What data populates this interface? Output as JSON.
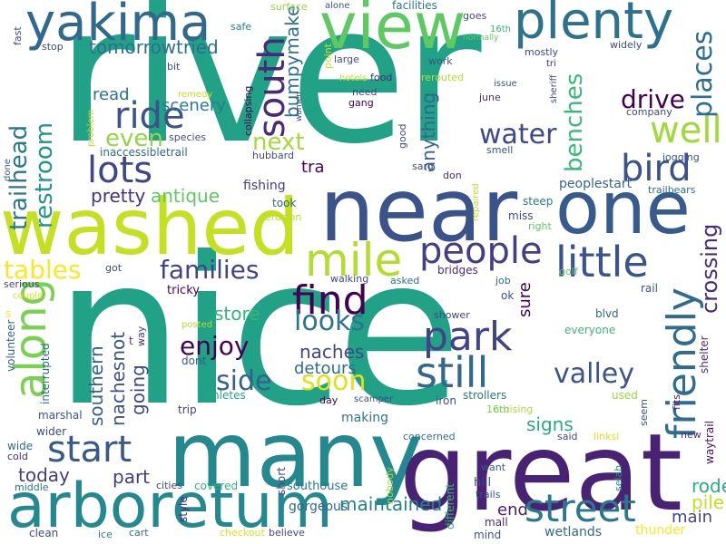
{
  "words": [
    {
      "id": "river",
      "text": "river",
      "color": "#21a185"
    },
    {
      "id": "nice",
      "text": "nice",
      "color": "#21a185"
    },
    {
      "id": "many",
      "text": "many",
      "color": "#23898e"
    },
    {
      "id": "great",
      "text": "great",
      "color": "#482374"
    },
    {
      "id": "near",
      "text": "near",
      "color": "#3a538b"
    },
    {
      "id": "one",
      "text": "one",
      "color": "#375b8d"
    },
    {
      "id": "washed",
      "text": "washed",
      "color": "#c4e021"
    },
    {
      "id": "arboretum",
      "text": "arboretum",
      "color": "#23898e"
    },
    {
      "id": "view",
      "text": "view",
      "color": "#5ec962"
    },
    {
      "id": "plenty",
      "text": "plenty",
      "color": "#2c728e"
    },
    {
      "id": "yakima",
      "text": "yakima",
      "color": "#31688e"
    },
    {
      "id": "mile",
      "text": "mile",
      "color": "#b2dd2d"
    },
    {
      "id": "people",
      "text": "people",
      "color": "#433e85"
    },
    {
      "id": "little",
      "text": "little",
      "color": "#3a548c"
    },
    {
      "id": "find",
      "text": "find",
      "color": "#440154"
    },
    {
      "id": "park",
      "text": "park",
      "color": "#414487"
    },
    {
      "id": "still",
      "text": "still",
      "color": "#31688e"
    },
    {
      "id": "start",
      "text": "start",
      "color": "#38598c"
    },
    {
      "id": "street",
      "text": "street",
      "color": "#2a788e"
    },
    {
      "id": "friendly",
      "text": "friendly",
      "color": "#2f6c8e"
    },
    {
      "id": "along",
      "text": "along",
      "color": "#7ad151"
    },
    {
      "id": "south",
      "text": "south",
      "color": "#472a7a"
    },
    {
      "id": "ride",
      "text": "ride",
      "color": "#3b528b"
    },
    {
      "id": "lots",
      "text": "lots",
      "color": "#3f4788"
    },
    {
      "id": "bird",
      "text": "bird",
      "color": "#3b528b"
    },
    {
      "id": "well",
      "text": "well",
      "color": "#a0da39"
    },
    {
      "id": "water",
      "text": "water",
      "color": "#3e4989"
    },
    {
      "id": "soon",
      "text": "soon",
      "color": "#dde318"
    },
    {
      "id": "valley",
      "text": "valley",
      "color": "#3a548c"
    },
    {
      "id": "enjoy",
      "text": "enjoy",
      "color": "#440154"
    },
    {
      "id": "looks",
      "text": "looks",
      "color": "#2b758e"
    },
    {
      "id": "side",
      "text": "side",
      "color": "#33638d"
    },
    {
      "id": "families",
      "text": "families",
      "color": "#414487"
    },
    {
      "id": "tables",
      "text": "tables",
      "color": "#fde725"
    },
    {
      "id": "trailhead",
      "text": "trailhead",
      "color": "#2a788e"
    },
    {
      "id": "restroom",
      "text": "restroom",
      "color": "#1f968b"
    },
    {
      "id": "places",
      "text": "places",
      "color": "#2d708e"
    },
    {
      "id": "benches",
      "text": "benches",
      "color": "#38b977"
    },
    {
      "id": "crossing",
      "text": "crossing",
      "color": "#472d7b"
    },
    {
      "id": "drive",
      "text": "drive",
      "color": "#440154"
    },
    {
      "id": "even",
      "text": "even",
      "color": "#8fd744"
    },
    {
      "id": "next",
      "text": "next",
      "color": "#a5db36"
    },
    {
      "id": "tomorrowtried",
      "text": "tomorrowtried",
      "color": "#2d708e"
    },
    {
      "id": "bumpymake",
      "text": "bumpymake",
      "color": "#2c728e"
    },
    {
      "id": "pretty",
      "text": "pretty",
      "color": "#46337f"
    },
    {
      "id": "antique",
      "text": "antique",
      "color": "#5ec962"
    },
    {
      "id": "read",
      "text": "read",
      "color": "#2c728e"
    },
    {
      "id": "scenery",
      "text": "scenery",
      "color": "#287d8e"
    },
    {
      "id": "anything",
      "text": "anything",
      "color": "#32658e"
    },
    {
      "id": "naches",
      "text": "naches",
      "color": "#3f4788"
    },
    {
      "id": "detours",
      "text": "detours",
      "color": "#2e6e8e"
    },
    {
      "id": "nachesnot",
      "text": "nachesnot",
      "color": "#3b528b"
    },
    {
      "id": "southern",
      "text": "southern",
      "color": "#33638d"
    },
    {
      "id": "going",
      "text": "going",
      "color": "#3e4989"
    },
    {
      "id": "store",
      "text": "store",
      "color": "#32b67a"
    },
    {
      "id": "signs",
      "text": "signs",
      "color": "#25ab82"
    },
    {
      "id": "sure",
      "text": "sure",
      "color": "#440154"
    },
    {
      "id": "tra",
      "text": "tra",
      "color": "#440154"
    },
    {
      "id": "thunder",
      "text": "thunder",
      "color": "#fde725"
    },
    {
      "id": "maintained",
      "text": "maintained",
      "color": "#26818e"
    },
    {
      "id": "today",
      "text": "today",
      "color": "#433e85"
    },
    {
      "id": "part",
      "text": "part",
      "color": "#443983"
    },
    {
      "id": "rode",
      "text": "rode",
      "color": "#29af7f"
    },
    {
      "id": "pile",
      "text": "pile",
      "color": "#c2df23"
    },
    {
      "id": "main",
      "text": "main",
      "color": "#404688"
    },
    {
      "id": "end",
      "text": "end",
      "color": "#481f70"
    },
    {
      "id": "fishing",
      "text": "fishing",
      "color": "#424086"
    },
    {
      "id": "took",
      "text": "took",
      "color": "#33638d"
    },
    {
      "id": "peoplestart",
      "text": "peoplestart",
      "color": "#32658e"
    },
    {
      "id": "jogging",
      "text": "jogging",
      "color": "#3b528b"
    },
    {
      "id": "trailbears",
      "text": "trailbears",
      "color": "#2d708e"
    },
    {
      "id": "erosion",
      "text": "erosion",
      "color": "#b5de2b"
    },
    {
      "id": "repaired",
      "text": "repaired",
      "color": "#b5de2b"
    },
    {
      "id": "steep",
      "text": "steep",
      "color": "#2a778e"
    },
    {
      "id": "miss",
      "text": "miss",
      "color": "#3e4989"
    },
    {
      "id": "right",
      "text": "right",
      "color": "#5ec962"
    },
    {
      "id": "bridges",
      "text": "bridges",
      "color": "#472a7a"
    },
    {
      "id": "golf",
      "text": "golf",
      "color": "#5ec962"
    },
    {
      "id": "rail",
      "text": "rail",
      "color": "#3b528b"
    },
    {
      "id": "walking",
      "text": "walking",
      "color": "#404688"
    },
    {
      "id": "asked",
      "text": "asked",
      "color": "#2d708e"
    },
    {
      "id": "job",
      "text": "job",
      "color": "#2e6e8e"
    },
    {
      "id": "ok",
      "text": "ok",
      "color": "#3e4a89"
    },
    {
      "id": "blvd",
      "text": "blvd",
      "color": "#32658e"
    },
    {
      "id": "shower",
      "text": "shower",
      "color": "#3e4989"
    },
    {
      "id": "everyone",
      "text": "everyone",
      "color": "#37b878"
    },
    {
      "id": "shelter",
      "text": "shelter",
      "color": "#472d7b"
    },
    {
      "id": "strollers",
      "text": "strollers",
      "color": "#2a788e"
    },
    {
      "id": "iron",
      "text": "iron",
      "color": "#3b528b"
    },
    {
      "id": "scamper",
      "text": "scamper",
      "color": "#3e4989"
    },
    {
      "id": "day",
      "text": "day",
      "color": "#440154"
    },
    {
      "id": "making",
      "text": "making",
      "color": "#2a788e"
    },
    {
      "id": "cruising",
      "text": "cruising",
      "color": "#a8db34"
    },
    {
      "id": "16th",
      "text": "16th",
      "color": "#7ad151"
    },
    {
      "id": "used",
      "text": "used",
      "color": "#95d840"
    },
    {
      "id": "seem",
      "text": "seem",
      "color": "#3b528b"
    },
    {
      "id": "waytrail",
      "text": "waytrail",
      "color": "#471063"
    },
    {
      "id": "fits",
      "text": "fits",
      "color": "#482475"
    },
    {
      "id": "new",
      "text": "new",
      "color": "#46327e"
    },
    {
      "id": "linksi",
      "text": "linksi",
      "color": "#dde318"
    },
    {
      "id": "said",
      "text": "said",
      "color": "#3e4989"
    },
    {
      "id": "concerned",
      "text": "concerned",
      "color": "#2c728e"
    },
    {
      "id": "nobody",
      "text": "nobody",
      "color": "#a2da37"
    },
    {
      "id": "different",
      "text": "different",
      "color": "#37b878"
    },
    {
      "id": "want",
      "text": "want",
      "color": "#38598c"
    },
    {
      "id": "hill",
      "text": "hill",
      "color": "#3e4989"
    },
    {
      "id": "trails",
      "text": "trails",
      "color": "#3b528b"
    },
    {
      "id": "mall",
      "text": "mall",
      "color": "#472a7a"
    },
    {
      "id": "mind",
      "text": "mind",
      "color": "#3b528b"
    },
    {
      "id": "wetlands",
      "text": "wetlands",
      "color": "#31688e"
    },
    {
      "id": "selah",
      "text": "selah",
      "color": "#1f948c"
    },
    {
      "id": "southouse",
      "text": "southouse",
      "color": "#2a788e"
    },
    {
      "id": "gorgeous",
      "text": "gorgeous",
      "color": "#31688e"
    },
    {
      "id": "covered",
      "text": "covered",
      "color": "#2fb47c"
    },
    {
      "id": "cities",
      "text": "cities",
      "color": "#3e4989"
    },
    {
      "id": "short",
      "text": "short",
      "color": "#404688"
    },
    {
      "id": "style",
      "text": "style",
      "color": "#472d7b"
    },
    {
      "id": "checkout",
      "text": "checkout",
      "color": "#dde318"
    },
    {
      "id": "believe",
      "text": "believe",
      "color": "#404688"
    },
    {
      "id": "cart",
      "text": "cart",
      "color": "#2e6e8e"
    },
    {
      "id": "ice",
      "text": "ice",
      "color": "#2a788e"
    },
    {
      "id": "clean",
      "text": "clean",
      "color": "#3e4989"
    },
    {
      "id": "middle",
      "text": "middle",
      "color": "#2a788e"
    },
    {
      "id": "cold",
      "text": "cold",
      "color": "#472d7b"
    },
    {
      "id": "wide",
      "text": "wide",
      "color": "#2e6e8e"
    },
    {
      "id": "wider",
      "text": "wider",
      "color": "#3e4989"
    },
    {
      "id": "marshal",
      "text": "marshal",
      "color": "#3b528b"
    },
    {
      "id": "trip",
      "text": "trip",
      "color": "#433e85"
    },
    {
      "id": "athletes",
      "text": "athletes",
      "color": "#21a685"
    },
    {
      "id": "dont",
      "text": "dont",
      "color": "#39568c"
    },
    {
      "id": "interrupted",
      "text": "interrupted",
      "color": "#2e6e8e"
    },
    {
      "id": "volunteer",
      "text": "volunteer",
      "color": "#32658e"
    },
    {
      "id": "posted",
      "text": "posted",
      "color": "#b5de2b"
    },
    {
      "id": "way",
      "text": "way",
      "color": "#46307e"
    },
    {
      "id": "t",
      "text": "t",
      "color": "#404688"
    },
    {
      "id": "s",
      "text": "s",
      "color": "#fde725"
    },
    {
      "id": "couple",
      "text": "couple",
      "color": "#dde318"
    },
    {
      "id": "serious",
      "text": "serious",
      "color": "#404688"
    },
    {
      "id": "tricky",
      "text": "tricky",
      "color": "#440154"
    },
    {
      "id": "got",
      "text": "got",
      "color": "#3e4989"
    },
    {
      "id": "fast",
      "text": "fast",
      "color": "#3e4989"
    },
    {
      "id": "done",
      "text": "done",
      "color": "#31688e"
    },
    {
      "id": "stop",
      "text": "stop",
      "color": "#3e4989"
    },
    {
      "id": "safe",
      "text": "safe",
      "color": "#26818e"
    },
    {
      "id": "bit",
      "text": "bit",
      "color": "#3e4989"
    },
    {
      "id": "remedy",
      "text": "remedy",
      "color": "#c2df23"
    },
    {
      "id": "species",
      "text": "species",
      "color": "#3b528b"
    },
    {
      "id": "problem",
      "text": "problem",
      "color": "#b5de2b"
    },
    {
      "id": "inaccessibletrail",
      "text": "inaccessibletrail",
      "color": "#31688e"
    },
    {
      "id": "collapsing",
      "text": "collapsing",
      "color": "#440154"
    },
    {
      "id": "women",
      "text": "women",
      "color": "#3e4989"
    },
    {
      "id": "hubbard",
      "text": "hubbard",
      "color": "#3e4989"
    },
    {
      "id": "surface",
      "text": "surface",
      "color": "#95d840"
    },
    {
      "id": "alone",
      "text": "alone",
      "color": "#39568c"
    },
    {
      "id": "facilities",
      "text": "facilities",
      "color": "#2a788e"
    },
    {
      "id": "goes",
      "text": "goes",
      "color": "#3e4989"
    },
    {
      "id": "16th2",
      "text": "16th",
      "color": "#35b779"
    },
    {
      "id": "normally",
      "text": "normally",
      "color": "#5ec962"
    },
    {
      "id": "point",
      "text": "point",
      "color": "#c8e020"
    },
    {
      "id": "large",
      "text": "large",
      "color": "#3e4989"
    },
    {
      "id": "food",
      "text": "food",
      "color": "#482878"
    },
    {
      "id": "rerouted",
      "text": "rerouted",
      "color": "#b5de2b"
    },
    {
      "id": "work",
      "text": "work",
      "color": "#3b528b"
    },
    {
      "id": "mostly",
      "text": "mostly",
      "color": "#3e4989"
    },
    {
      "id": "tri",
      "text": "tri",
      "color": "#482878"
    },
    {
      "id": "widely",
      "text": "widely",
      "color": "#3e4989"
    },
    {
      "id": "hotels",
      "text": "hotels",
      "color": "#c8e020"
    },
    {
      "id": "need",
      "text": "need",
      "color": "#3e4989"
    },
    {
      "id": "gang",
      "text": "gang",
      "color": "#440154"
    },
    {
      "id": "june",
      "text": "june",
      "color": "#472d7b"
    },
    {
      "id": "issue",
      "text": "issue",
      "color": "#3b528b"
    },
    {
      "id": "sheriff",
      "text": "sheriff",
      "color": "#3e4989"
    },
    {
      "id": "company",
      "text": "company",
      "color": "#3e4989"
    },
    {
      "id": "good",
      "text": "good",
      "color": "#3e4989"
    },
    {
      "id": "smell",
      "text": "smell",
      "color": "#3b528b"
    },
    {
      "id": "sarg",
      "text": "sarg",
      "color": "#3e4989"
    },
    {
      "id": "don",
      "text": "don",
      "color": "#482878"
    }
  ]
}
